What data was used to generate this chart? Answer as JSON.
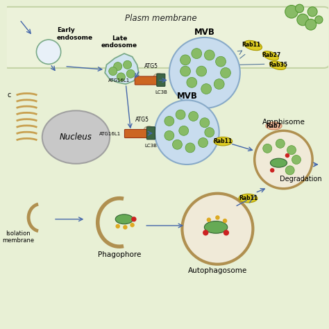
{
  "colors": {
    "cell_fill": "#e8f0d5",
    "cell_outline": "#a0b878",
    "endosome_fill": "#d0e4f0",
    "endosome_outline": "#7aaa88",
    "mvb_fill": "#c8dcee",
    "mvb_outline": "#88aac8",
    "mvb_dot": "#88bb66",
    "mvb_dot_outline": "#559933",
    "nucleus_fill": "#c8c8c8",
    "nucleus_outline": "#a0a0a0",
    "er_color": "#c8a050",
    "autophagosome_outline": "#b09050",
    "autophagosome_fill": "#f0ead8",
    "arrow_color": "#4466aa",
    "atg5_fill": "#d8c8a8",
    "atg5_outline": "#aa9977",
    "atg16l1_fill": "#cc6622",
    "atg16l1_outline": "#993311",
    "lc3b_fill": "#3d6644",
    "lc3b_outline": "#224433",
    "rab11_fill": "#ddcc22",
    "rab11_outline": "#aa9900",
    "rab27_fill": "#ddcc22",
    "rab27_outline": "#aa9900",
    "rab35_fill": "#ddcc22",
    "rab35_outline": "#aa9900",
    "rab7_fill": "#f0b898",
    "rab7_outline": "#cc8866",
    "mito_fill": "#66aa55",
    "mito_outline": "#336633",
    "dot_red": "#cc2222",
    "dot_yellow": "#ddaa22",
    "exosome_fill": "#88bb66",
    "exosome_outline": "#559933",
    "line_color": "#557799"
  },
  "text_labels": {
    "plasm_membrane": "Plasm membrane",
    "early_endosome": "Early\nendosome",
    "late_endosome": "Late\nendosome",
    "mvb_top": "MVB",
    "mvb_bottom": "MVB",
    "nucleus": "Nucleus",
    "amphisome": "Amphisome",
    "autophagosome": "Autophagosome",
    "phagophore": "Phagophore",
    "isolation_membrane": "Isolation\nmembrane",
    "degradation": "Degradation",
    "atg5": "ATG5",
    "atg16l1": "ATG16L1",
    "lc3b": "LC3B",
    "rab11": "Rab11",
    "rab27": "Rab27",
    "rab35": "Rab35",
    "rab7": "Rab7"
  }
}
